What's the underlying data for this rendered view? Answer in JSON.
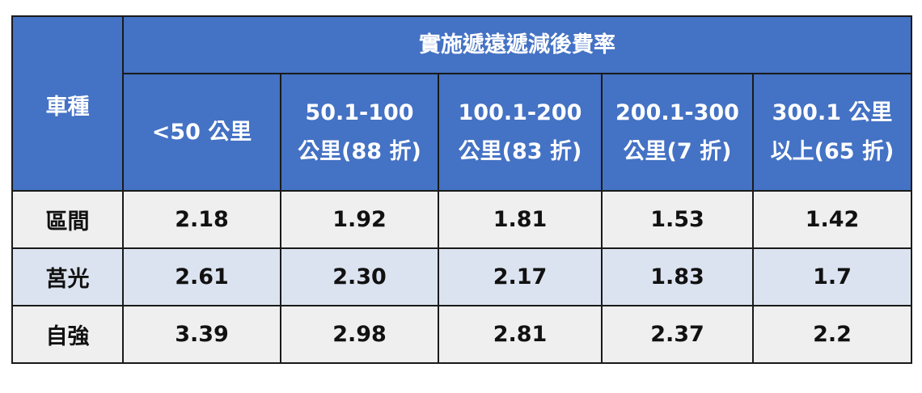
{
  "table": {
    "corner": "車種",
    "group_header": "實施遞遠遞減後費率",
    "columns": [
      [
        "<50 公里"
      ],
      [
        "50.1-100",
        "公里(88 折)"
      ],
      [
        "100.1-200",
        "公里(83 折)"
      ],
      [
        "200.1-300",
        "公里(7 折)"
      ],
      [
        "300.1 公里",
        "以上(65 折)"
      ]
    ],
    "rows": [
      [
        "區間",
        "2.18",
        "1.92",
        "1.81",
        "1.53",
        "1.42"
      ],
      [
        "莒光",
        "2.61",
        "2.30",
        "2.17",
        "1.83",
        "1.7"
      ],
      [
        "自強",
        "3.39",
        "2.98",
        "2.81",
        "2.37",
        "2.2"
      ]
    ]
  }
}
